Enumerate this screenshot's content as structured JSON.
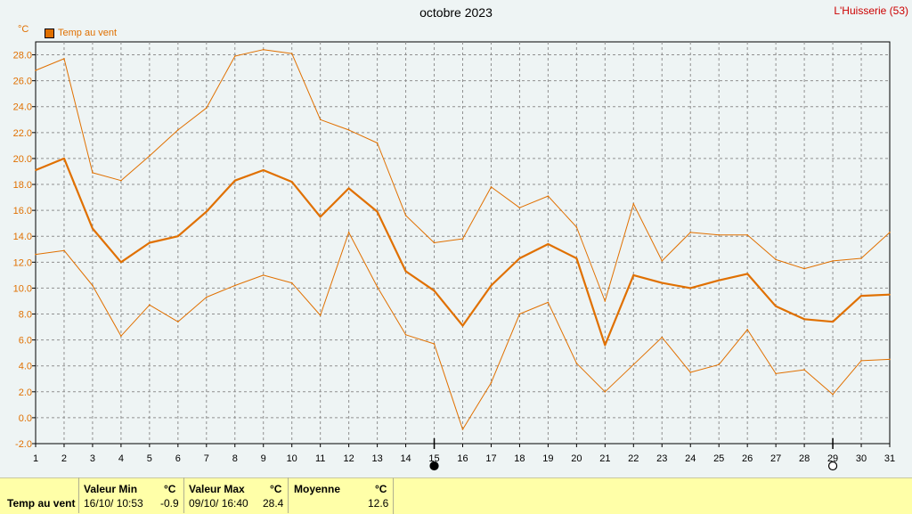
{
  "title": "octobre 2023",
  "station": "L'Huisserie (53)",
  "unit": "°C",
  "legend_label": "Temp au vent",
  "colors": {
    "series": "#e07000",
    "grid": "#909090",
    "background": "#eef4f4",
    "footer": "#ffffa8"
  },
  "chart_data": {
    "type": "line",
    "title": "octobre 2023",
    "ylabel": "°C",
    "x": [
      1,
      2,
      3,
      4,
      5,
      6,
      7,
      8,
      9,
      10,
      11,
      12,
      13,
      14,
      15,
      16,
      17,
      18,
      19,
      20,
      21,
      22,
      23,
      24,
      25,
      26,
      27,
      28,
      29,
      30,
      31
    ],
    "ylim": [
      -2.0,
      29.0
    ],
    "yticks": [
      "-2.0",
      "0.0",
      "2.0",
      "4.0",
      "6.0",
      "8.0",
      "10.0",
      "12.0",
      "14.0",
      "16.0",
      "18.0",
      "20.0",
      "22.0",
      "24.0",
      "26.0",
      "28.0"
    ],
    "grid": true,
    "legend_position": "top-left",
    "series": [
      {
        "name": "Temp au vent",
        "role": "max",
        "values": [
          26.8,
          27.7,
          18.9,
          18.3,
          20.2,
          22.2,
          23.9,
          27.9,
          28.4,
          28.1,
          23.0,
          22.2,
          21.2,
          15.6,
          13.5,
          13.8,
          17.8,
          16.2,
          17.1,
          14.7,
          9.0,
          16.5,
          12.1,
          14.3,
          14.1,
          14.1,
          12.2,
          11.5,
          12.1,
          12.3,
          14.3
        ]
      },
      {
        "name": "Temp au vent",
        "role": "mean",
        "values": [
          19.1,
          20.0,
          14.6,
          12.0,
          13.5,
          14.0,
          15.9,
          18.3,
          19.1,
          18.2,
          15.5,
          17.7,
          15.9,
          11.3,
          9.8,
          7.1,
          10.2,
          12.3,
          13.4,
          12.3,
          5.6,
          11.0,
          10.4,
          10.0,
          10.6,
          11.1,
          8.6,
          7.6,
          7.4,
          9.4,
          9.5
        ]
      },
      {
        "name": "Temp au vent",
        "role": "min",
        "values": [
          12.6,
          12.9,
          10.2,
          6.3,
          8.7,
          7.4,
          9.3,
          10.2,
          11.0,
          10.4,
          7.9,
          14.3,
          10.1,
          6.4,
          5.7,
          -0.9,
          2.7,
          8.0,
          8.9,
          4.2,
          2.0,
          4.1,
          6.2,
          3.5,
          4.1,
          6.8,
          3.4,
          3.7,
          1.8,
          4.4,
          4.5
        ]
      }
    ],
    "moon_markers": [
      {
        "day": 15,
        "phase": "new"
      },
      {
        "day": 29,
        "phase": "full"
      }
    ]
  },
  "footer": {
    "row_label": "Temp au vent",
    "min_header": "Valeur Min",
    "min_unit": "°C",
    "min_date": "16/10/ 10:53",
    "min_value": "-0.9",
    "max_header": "Valeur Max",
    "max_unit": "°C",
    "max_date": "09/10/ 16:40",
    "max_value": "28.4",
    "mean_header": "Moyenne",
    "mean_unit": "°C",
    "mean_value": "12.6"
  }
}
